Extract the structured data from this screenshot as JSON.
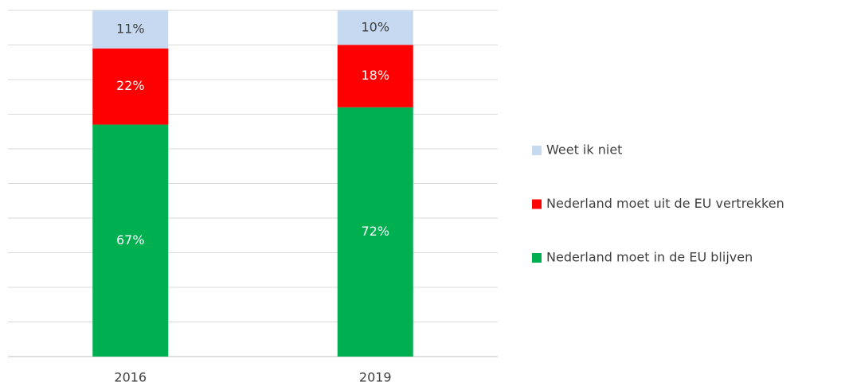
{
  "chart_data": {
    "type": "stacked_bar",
    "categories": [
      "2016",
      "2019"
    ],
    "series": [
      {
        "name": "Nederland moet in de EU blijven",
        "color": "#00b050",
        "values": [
          67,
          72
        ],
        "value_labels": [
          "67%",
          "72%"
        ]
      },
      {
        "name": "Nederland moet uit de EU vertrekken",
        "color": "#ff0000",
        "values": [
          22,
          18
        ],
        "value_labels": [
          "22%",
          "18%"
        ]
      },
      {
        "name": "Weet ik niet",
        "color": "#c6d9f1",
        "values": [
          11,
          10
        ],
        "value_labels": [
          "11%",
          "10%"
        ]
      }
    ],
    "ylim": [
      0,
      100
    ],
    "yticks": [
      0,
      10,
      20,
      30,
      40,
      50,
      60,
      70,
      80,
      90,
      100
    ],
    "grid": true,
    "legend": "right"
  }
}
